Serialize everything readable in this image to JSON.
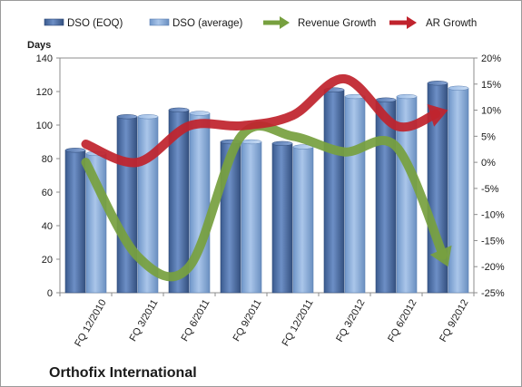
{
  "chart_data": {
    "type": "bar",
    "title": "Orthofix International",
    "ylabel": "Days",
    "ylim": [
      0,
      140
    ],
    "y_ticks": [
      0,
      20,
      40,
      60,
      80,
      100,
      120,
      140
    ],
    "y2lim": [
      -25,
      20
    ],
    "y2_ticks": [
      "-25%",
      "-20%",
      "-15%",
      "-10%",
      "-5%",
      "0%",
      "5%",
      "10%",
      "15%",
      "20%"
    ],
    "grid": false,
    "legend_position": "top",
    "categories": [
      "FQ 12/2010",
      "FQ 3/2011",
      "FQ 6/2011",
      "FQ 9/2011",
      "FQ 12/2011",
      "FQ 3/2012",
      "FQ 6/2012",
      "FQ 9/2012"
    ],
    "series": [
      {
        "name": "DSO (EOQ)",
        "type": "bar",
        "axis": "left",
        "color": "#4f6fa3",
        "values": [
          85,
          105,
          109,
          90,
          89,
          121,
          115,
          125
        ]
      },
      {
        "name": "DSO (average)",
        "type": "bar",
        "axis": "left",
        "color": "#8db3e2",
        "values": [
          83,
          105,
          107,
          90,
          87,
          117,
          117,
          122
        ]
      },
      {
        "name": "Revenue Growth",
        "type": "line",
        "axis": "right",
        "unit": "%",
        "color": "#77a03f",
        "values": [
          0,
          -18,
          -20,
          5,
          5,
          2,
          3,
          -20
        ]
      },
      {
        "name": "AR Growth",
        "type": "line",
        "axis": "right",
        "unit": "%",
        "color": "#c0232d",
        "values": [
          3.5,
          0,
          7,
          7,
          9,
          16,
          7,
          10
        ]
      }
    ]
  }
}
